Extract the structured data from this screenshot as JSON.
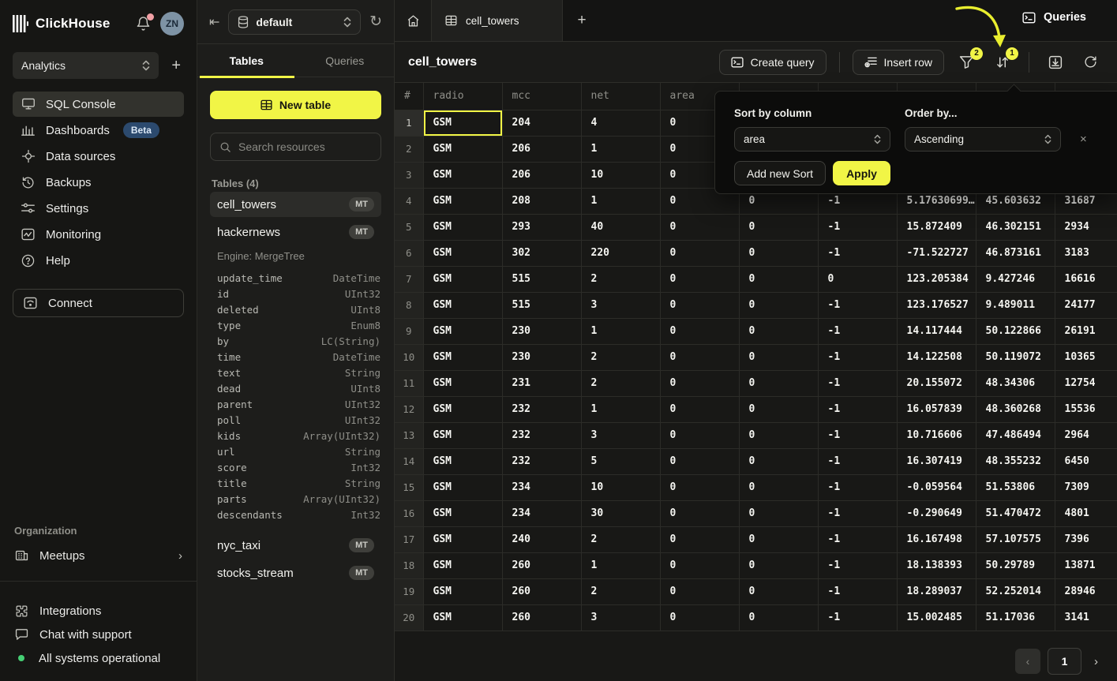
{
  "colors": {
    "accent_yellow": "#f1f546",
    "beta_badge_blue": "#2c4a6e",
    "status_green": "#45cf74",
    "notification_pink": "#f2a1a6",
    "selection_border": "#f1f546"
  },
  "icons": {
    "collapse_left": "⇤",
    "refresh": "↻",
    "plus": "+",
    "chevron_right": "›",
    "chevron_left": "‹",
    "close": "×",
    "status_dot": "●"
  },
  "sidebar": {
    "brand": "ClickHouse",
    "avatar_initials": "ZN",
    "workspace": {
      "value": "Analytics"
    },
    "nav": [
      {
        "label": "SQL Console",
        "active": true
      },
      {
        "label": "Dashboards",
        "badge": "Beta"
      },
      {
        "label": "Data sources"
      },
      {
        "label": "Backups"
      },
      {
        "label": "Settings"
      },
      {
        "label": "Monitoring"
      },
      {
        "label": "Help"
      }
    ],
    "connect_label": "Connect",
    "organization": {
      "label": "Organization",
      "items": [
        {
          "label": "Meetups"
        }
      ]
    },
    "footer": [
      {
        "label": "Integrations"
      },
      {
        "label": "Chat with support"
      },
      {
        "label": "All systems operational"
      }
    ]
  },
  "explorer": {
    "database": "default",
    "tabs": [
      {
        "label": "Tables",
        "active": true
      },
      {
        "label": "Queries",
        "active": false
      }
    ],
    "new_table_label": "New table",
    "search_placeholder": "Search resources",
    "section_label": "Tables (4)",
    "tables": [
      {
        "name": "cell_towers",
        "badge": "MT",
        "active": true
      },
      {
        "name": "hackernews",
        "badge": "MT",
        "engine": "Engine: MergeTree",
        "columns": [
          [
            "update_time",
            "DateTime"
          ],
          [
            "id",
            "UInt32"
          ],
          [
            "deleted",
            "UInt8"
          ],
          [
            "type",
            "Enum8"
          ],
          [
            "by",
            "LC(String)"
          ],
          [
            "time",
            "DateTime"
          ],
          [
            "text",
            "String"
          ],
          [
            "dead",
            "UInt8"
          ],
          [
            "parent",
            "UInt32"
          ],
          [
            "poll",
            "UInt32"
          ],
          [
            "kids",
            "Array(UInt32)"
          ],
          [
            "url",
            "String"
          ],
          [
            "score",
            "Int32"
          ],
          [
            "title",
            "String"
          ],
          [
            "parts",
            "Array(UInt32)"
          ],
          [
            "descendants",
            "Int32"
          ]
        ]
      },
      {
        "name": "nyc_taxi",
        "badge": "MT"
      },
      {
        "name": "stocks_stream",
        "badge": "MT"
      }
    ]
  },
  "main": {
    "open_tab": {
      "title": "cell_towers"
    },
    "queries_label": "Queries",
    "title": "cell_towers",
    "toolbar": {
      "create_query_label": "Create query",
      "insert_row_label": "Insert row",
      "filter_badge": "2",
      "sort_badge": "1"
    },
    "sort_popover": {
      "sort_by_label": "Sort by column",
      "sort_by_value": "area",
      "order_by_label": "Order by...",
      "order_by_value": "Ascending",
      "add_sort_label": "Add new Sort",
      "apply_label": "Apply"
    },
    "table": {
      "headers": [
        "#",
        "radio",
        "mcc",
        "net",
        "area",
        "",
        "",
        "",
        "",
        ""
      ],
      "selected_cell": {
        "row_index": 0,
        "col_index": 1
      },
      "rows": [
        [
          "1",
          "GSM",
          "204",
          "4",
          "0",
          "",
          "",
          "",
          "",
          ""
        ],
        [
          "2",
          "GSM",
          "206",
          "1",
          "0",
          "",
          "",
          "",
          "",
          ""
        ],
        [
          "3",
          "GSM",
          "206",
          "10",
          "0",
          "",
          "",
          "",
          "",
          ""
        ],
        [
          "4",
          "GSM",
          "208",
          "1",
          "0",
          "0",
          "-1",
          "5.17630699…",
          "45.603632",
          "31687"
        ],
        [
          "5",
          "GSM",
          "293",
          "40",
          "0",
          "0",
          "-1",
          "15.872409",
          "46.302151",
          "2934"
        ],
        [
          "6",
          "GSM",
          "302",
          "220",
          "0",
          "0",
          "-1",
          "-71.522727",
          "46.873161",
          "3183"
        ],
        [
          "7",
          "GSM",
          "515",
          "2",
          "0",
          "0",
          "0",
          "123.205384",
          "9.427246",
          "16616"
        ],
        [
          "8",
          "GSM",
          "515",
          "3",
          "0",
          "0",
          "-1",
          "123.176527",
          "9.489011",
          "24177"
        ],
        [
          "9",
          "GSM",
          "230",
          "1",
          "0",
          "0",
          "-1",
          "14.117444",
          "50.122866",
          "26191"
        ],
        [
          "10",
          "GSM",
          "230",
          "2",
          "0",
          "0",
          "-1",
          "14.122508",
          "50.119072",
          "10365"
        ],
        [
          "11",
          "GSM",
          "231",
          "2",
          "0",
          "0",
          "-1",
          "20.155072",
          "48.34306",
          "12754"
        ],
        [
          "12",
          "GSM",
          "232",
          "1",
          "0",
          "0",
          "-1",
          "16.057839",
          "48.360268",
          "15536"
        ],
        [
          "13",
          "GSM",
          "232",
          "3",
          "0",
          "0",
          "-1",
          "10.716606",
          "47.486494",
          "2964"
        ],
        [
          "14",
          "GSM",
          "232",
          "5",
          "0",
          "0",
          "-1",
          "16.307419",
          "48.355232",
          "6450"
        ],
        [
          "15",
          "GSM",
          "234",
          "10",
          "0",
          "0",
          "-1",
          "-0.059564",
          "51.53806",
          "7309"
        ],
        [
          "16",
          "GSM",
          "234",
          "30",
          "0",
          "0",
          "-1",
          "-0.290649",
          "51.470472",
          "4801"
        ],
        [
          "17",
          "GSM",
          "240",
          "2",
          "0",
          "0",
          "-1",
          "16.167498",
          "57.107575",
          "7396"
        ],
        [
          "18",
          "GSM",
          "260",
          "1",
          "0",
          "0",
          "-1",
          "18.138393",
          "50.29789",
          "13871"
        ],
        [
          "19",
          "GSM",
          "260",
          "2",
          "0",
          "0",
          "-1",
          "18.289037",
          "52.252014",
          "28946"
        ],
        [
          "20",
          "GSM",
          "260",
          "3",
          "0",
          "0",
          "-1",
          "15.002485",
          "51.17036",
          "3141"
        ]
      ]
    },
    "pagination": {
      "page": "1"
    }
  }
}
